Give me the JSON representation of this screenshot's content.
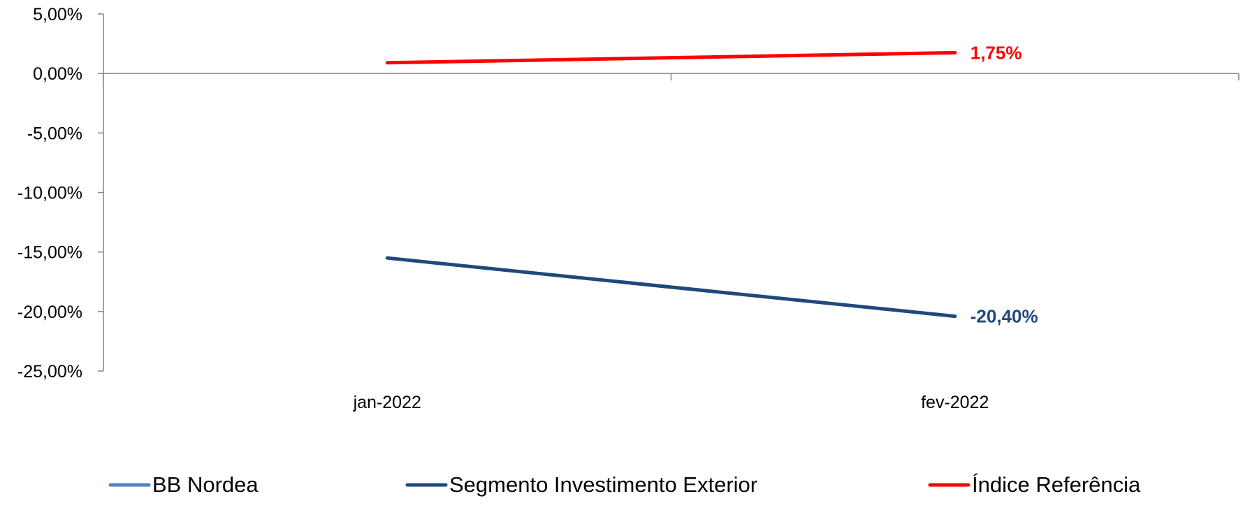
{
  "chart_data": {
    "type": "line",
    "categories": [
      "jan-2022",
      "fev-2022"
    ],
    "ylim": [
      -25,
      5
    ],
    "ytick_values": [
      5,
      0,
      -5,
      -10,
      -15,
      -20,
      -25
    ],
    "ytick_labels": [
      "5,00%",
      "0,00%",
      "-5,00%",
      "-10,00%",
      "-15,00%",
      "-20,00%",
      "-25,00%"
    ],
    "grid": false,
    "legend_position": "bottom",
    "series": [
      {
        "name": "BB Nordea",
        "color": "#4F81BD",
        "values": [
          null,
          null
        ],
        "end_label": ""
      },
      {
        "name": "Segmento Investimento Exterior",
        "color": "#1F497D",
        "values": [
          -15.5,
          -20.4
        ],
        "end_label": "-20,40%"
      },
      {
        "name": "Índice Referência",
        "color": "#FF0000",
        "values": [
          0.9,
          1.75
        ],
        "end_label": "1,75%"
      }
    ]
  }
}
